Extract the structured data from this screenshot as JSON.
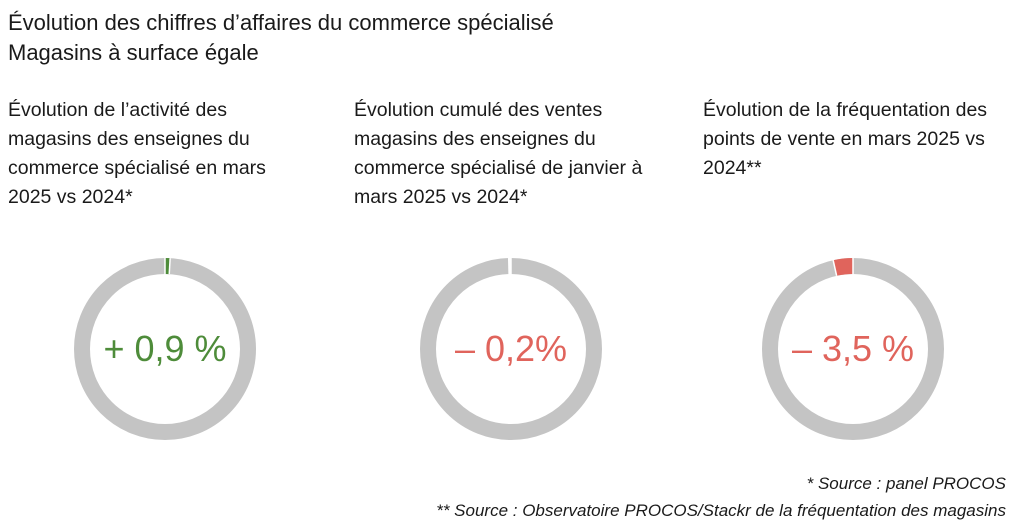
{
  "header": {
    "title": "Évolution des chiffres d’affaires du commerce spécialisé",
    "subtitle": "Magasins à surface égale"
  },
  "chart_data": [
    {
      "type": "pie",
      "title_lines": [
        "Évolution de l’activité des",
        "magasins des enseignes du",
        "commerce spécialisé en mars",
        "2025 vs 2024*"
      ],
      "center_label": "+ 0,9 %",
      "value_percent": 0.9,
      "direction": "positive",
      "segment_color": "#4e8c3a",
      "label_color": "#4e8c3a",
      "track_color": "#c4c4c4"
    },
    {
      "type": "pie",
      "title_lines": [
        "Évolution cumulé des ventes",
        "magasins des enseignes du",
        "commerce spécialisé de janvier à",
        "mars 2025 vs 2024*"
      ],
      "center_label": "– 0,2%",
      "value_percent": -0.2,
      "direction": "negative",
      "segment_color": "#ffffff",
      "label_color": "#e0645c",
      "track_color": "#c4c4c4"
    },
    {
      "type": "pie",
      "title_lines": [
        "Évolution de la fréquentation des",
        "points de vente en mars 2025 vs",
        "2024**"
      ],
      "center_label": "– 3,5 %",
      "value_percent": -3.5,
      "direction": "negative",
      "segment_color": "#e0645c",
      "label_color": "#e0645c",
      "track_color": "#c4c4c4"
    }
  ],
  "footer": {
    "note1": "* Source : panel PROCOS",
    "note2": "** Source : Observatoire PROCOS/Stackr de la fréquentation des magasins"
  }
}
